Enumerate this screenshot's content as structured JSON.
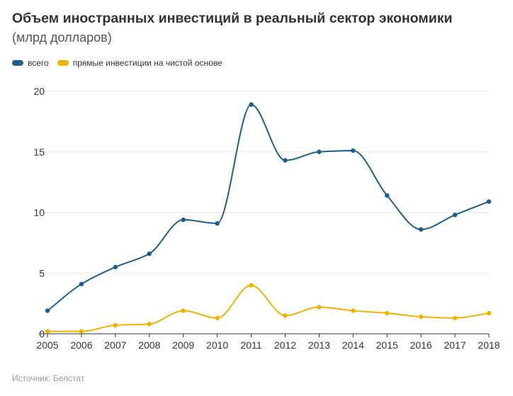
{
  "header": {
    "title": "Объем иностранных инвестиций в реальный сектор экономики",
    "subtitle": "(млрд долларов)"
  },
  "source": "Источник: Белстат",
  "chart_data": {
    "type": "line",
    "x": [
      "2005",
      "2006",
      "2007",
      "2008",
      "2009",
      "2010",
      "2011",
      "2012",
      "2013",
      "2014",
      "2015",
      "2016",
      "2017",
      "2018"
    ],
    "series": [
      {
        "name": "всего",
        "color": "#1d5f8a",
        "values": [
          1.9,
          4.1,
          5.5,
          6.6,
          9.4,
          9.1,
          18.9,
          14.3,
          15.0,
          15.1,
          11.4,
          8.6,
          9.8,
          10.9
        ]
      },
      {
        "name": "прямые инвестиции на чистой основе",
        "color": "#f0b400",
        "values": [
          0.2,
          0.2,
          0.7,
          0.8,
          1.9,
          1.3,
          4.0,
          1.5,
          2.2,
          1.9,
          1.7,
          1.4,
          1.3,
          1.7
        ]
      }
    ],
    "ylim": [
      0,
      20
    ],
    "yticks": [
      0,
      5,
      10,
      15,
      20
    ],
    "grid": true,
    "legend_position": "top-left",
    "smooth": true
  }
}
